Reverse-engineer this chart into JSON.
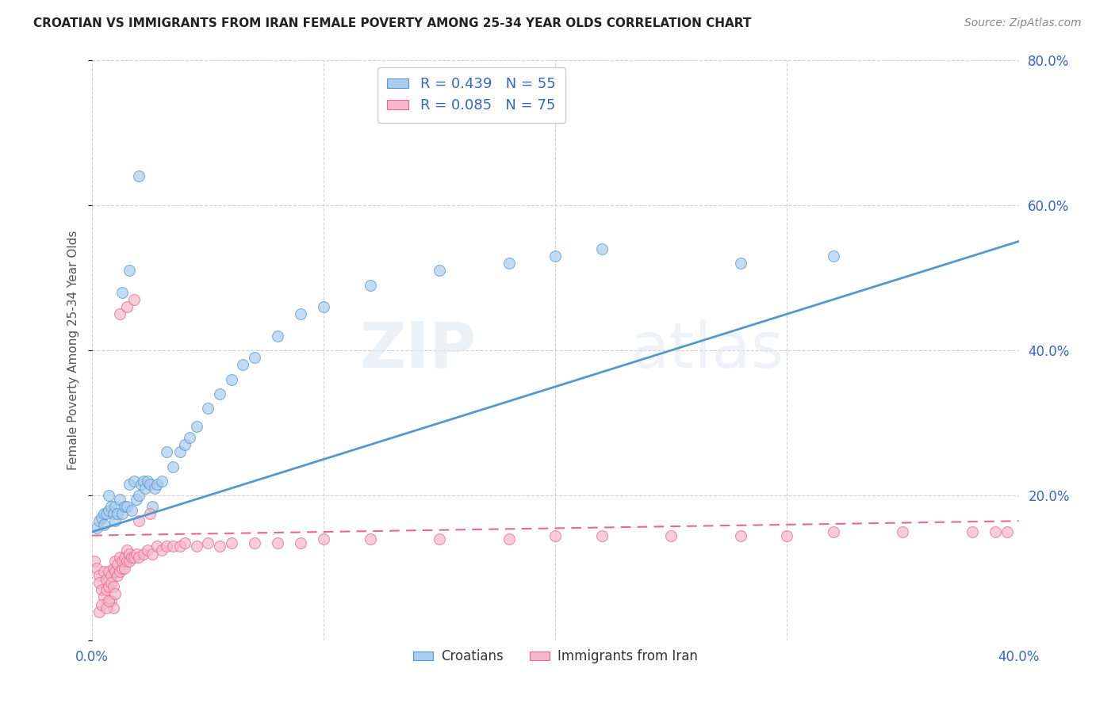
{
  "title": "CROATIAN VS IMMIGRANTS FROM IRAN FEMALE POVERTY AMONG 25-34 YEAR OLDS CORRELATION CHART",
  "source": "Source: ZipAtlas.com",
  "ylabel": "Female Poverty Among 25-34 Year Olds",
  "xlim": [
    0.0,
    0.4
  ],
  "ylim": [
    0.0,
    0.8
  ],
  "xticks": [
    0.0,
    0.1,
    0.2,
    0.3,
    0.4
  ],
  "xtick_labels": [
    "0.0%",
    "",
    "",
    "",
    "40.0%"
  ],
  "yticks_right": [
    0.0,
    0.2,
    0.4,
    0.6,
    0.8
  ],
  "ytick_right_labels": [
    "",
    "20.0%",
    "40.0%",
    "60.0%",
    "80.0%"
  ],
  "croatians_color": "#aaccee",
  "iran_color": "#f4b8cc",
  "trendline_croatians_color": "#5599cc",
  "trendline_iran_color": "#ee6688",
  "legend_text_color": "#3366cc",
  "R_croatians": 0.439,
  "N_croatians": 55,
  "R_iran": 0.085,
  "N_iran": 75,
  "croatians_x": [
    0.002,
    0.003,
    0.004,
    0.005,
    0.005,
    0.006,
    0.007,
    0.007,
    0.008,
    0.009,
    0.01,
    0.01,
    0.011,
    0.012,
    0.013,
    0.014,
    0.015,
    0.016,
    0.017,
    0.018,
    0.019,
    0.02,
    0.021,
    0.022,
    0.023,
    0.024,
    0.025,
    0.026,
    0.027,
    0.028,
    0.03,
    0.032,
    0.035,
    0.038,
    0.04,
    0.042,
    0.045,
    0.05,
    0.055,
    0.06,
    0.065,
    0.07,
    0.08,
    0.09,
    0.1,
    0.12,
    0.15,
    0.18,
    0.2,
    0.22,
    0.013,
    0.016,
    0.02,
    0.28,
    0.32
  ],
  "croatians_y": [
    0.155,
    0.165,
    0.17,
    0.16,
    0.175,
    0.175,
    0.18,
    0.2,
    0.185,
    0.175,
    0.165,
    0.185,
    0.175,
    0.195,
    0.175,
    0.185,
    0.185,
    0.215,
    0.18,
    0.22,
    0.195,
    0.2,
    0.215,
    0.22,
    0.21,
    0.22,
    0.215,
    0.185,
    0.21,
    0.215,
    0.22,
    0.26,
    0.24,
    0.26,
    0.27,
    0.28,
    0.295,
    0.32,
    0.34,
    0.36,
    0.38,
    0.39,
    0.42,
    0.45,
    0.46,
    0.49,
    0.51,
    0.52,
    0.53,
    0.54,
    0.48,
    0.51,
    0.64,
    0.52,
    0.53
  ],
  "iran_x": [
    0.001,
    0.002,
    0.003,
    0.003,
    0.004,
    0.005,
    0.005,
    0.006,
    0.006,
    0.007,
    0.007,
    0.008,
    0.008,
    0.009,
    0.009,
    0.01,
    0.01,
    0.011,
    0.011,
    0.012,
    0.012,
    0.013,
    0.013,
    0.014,
    0.014,
    0.015,
    0.015,
    0.016,
    0.016,
    0.017,
    0.018,
    0.019,
    0.02,
    0.022,
    0.024,
    0.026,
    0.028,
    0.03,
    0.032,
    0.035,
    0.038,
    0.04,
    0.045,
    0.05,
    0.055,
    0.06,
    0.07,
    0.08,
    0.09,
    0.1,
    0.12,
    0.15,
    0.18,
    0.2,
    0.22,
    0.25,
    0.28,
    0.3,
    0.32,
    0.35,
    0.38,
    0.39,
    0.395,
    0.012,
    0.015,
    0.018,
    0.02,
    0.025,
    0.008,
    0.009,
    0.003,
    0.004,
    0.006,
    0.007,
    0.01
  ],
  "iran_y": [
    0.11,
    0.1,
    0.09,
    0.08,
    0.07,
    0.095,
    0.06,
    0.085,
    0.07,
    0.095,
    0.075,
    0.09,
    0.08,
    0.075,
    0.1,
    0.095,
    0.11,
    0.09,
    0.105,
    0.095,
    0.115,
    0.1,
    0.11,
    0.1,
    0.115,
    0.11,
    0.125,
    0.11,
    0.12,
    0.115,
    0.115,
    0.12,
    0.115,
    0.12,
    0.125,
    0.12,
    0.13,
    0.125,
    0.13,
    0.13,
    0.13,
    0.135,
    0.13,
    0.135,
    0.13,
    0.135,
    0.135,
    0.135,
    0.135,
    0.14,
    0.14,
    0.14,
    0.14,
    0.145,
    0.145,
    0.145,
    0.145,
    0.145,
    0.15,
    0.15,
    0.15,
    0.15,
    0.15,
    0.45,
    0.46,
    0.47,
    0.165,
    0.175,
    0.055,
    0.045,
    0.04,
    0.05,
    0.045,
    0.055,
    0.065
  ],
  "watermark_zip": "ZIP",
  "watermark_atlas": "atlas",
  "background_color": "#ffffff",
  "grid_color": "#cccccc"
}
